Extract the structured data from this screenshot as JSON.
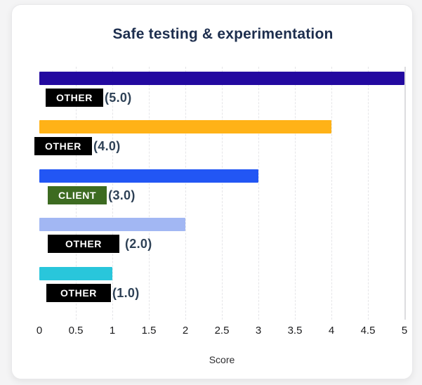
{
  "chart_data": {
    "type": "bar",
    "orientation": "horizontal",
    "title": "Safe testing & experimentation",
    "xlabel": "Score",
    "xlim": [
      0,
      5
    ],
    "xticks": [
      "0",
      "0.5",
      "1",
      "1.5",
      "2",
      "2.5",
      "3",
      "3.5",
      "4",
      "4.5",
      "5"
    ],
    "grid": "vertical-dashed-every-0.5-solid-at-5",
    "legend": "none",
    "categories": [
      "OTHER",
      "OTHER",
      "CLIENT",
      "OTHER",
      "OTHER"
    ],
    "values": [
      5.0,
      4.0,
      3.0,
      2.0,
      1.0
    ],
    "rows": [
      {
        "badge": "OTHER",
        "badge_color": "#000000",
        "bar_color": "#2309a0",
        "value": 5.0,
        "value_label": "(5.0)",
        "remnant": ""
      },
      {
        "badge": "OTHER",
        "badge_color": "#000000",
        "bar_color": "#ffb217",
        "value": 4.0,
        "value_label": "(4.0)",
        "remnant": ""
      },
      {
        "badge": "CLIENT",
        "badge_color": "#3d6b21",
        "bar_color": "#2256f4",
        "value": 3.0,
        "value_label": "(3.0)",
        "remnant": ""
      },
      {
        "badge": "OTHER",
        "badge_color": "#000000",
        "bar_color": "#a2b7f3",
        "value": 2.0,
        "value_label": "(2.0)",
        "remnant": ")"
      },
      {
        "badge": "OTHER",
        "badge_color": "#000000",
        "bar_color": "#29c6db",
        "value": 1.0,
        "value_label": "(1.0)",
        "remnant": ""
      }
    ],
    "colors": {
      "title_text": "#1d2e4e",
      "value_text": "#2e4156",
      "tick_text": "#1c1c1e",
      "card_background": "#ffffff",
      "gridline": "#e5e5e8"
    }
  }
}
